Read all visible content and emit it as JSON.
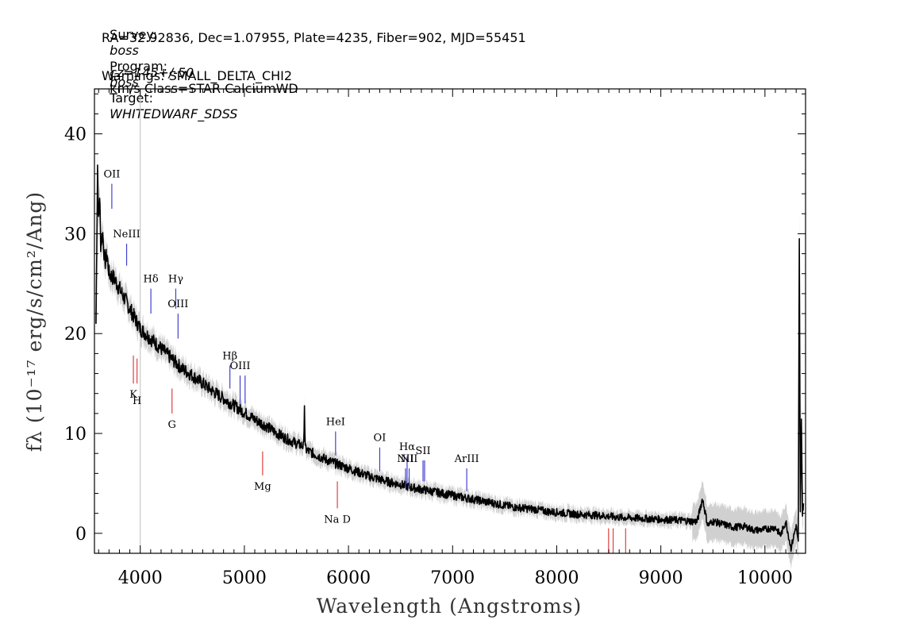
{
  "header": {
    "line1": {
      "survey_label": "Survey:",
      "survey": "boss",
      "program_label": "Program:",
      "program": "boss",
      "target_label": "Target:",
      "target": "WHITEDWARF_SDSS"
    },
    "line2": "RA=32.92836, Dec=1.07955, Plate=4235, Fiber=902, MJD=55451",
    "line3": {
      "cz": "cz=145+/-50",
      "rest": "km/s Class=STAR CalciumWD"
    },
    "line4": "Warnings: SMALL_DELTA_CHI2"
  },
  "chart_data": {
    "type": "line",
    "xlabel": "Wavelength (Angstroms)",
    "ylabel": "fλ (10⁻¹⁷ erg/s/cm²/Ang)",
    "xlim": [
      3560,
      10390
    ],
    "ylim": [
      -2,
      44.5
    ],
    "x_ticks": [
      4000,
      5000,
      6000,
      7000,
      8000,
      9000,
      10000
    ],
    "y_ticks": [
      0,
      10,
      20,
      30,
      40
    ],
    "grid": false,
    "vline_x": 4000,
    "series": [
      {
        "color": "#000000",
        "x": [
          3575,
          3590,
          3600,
          3610,
          3620,
          3640,
          3660,
          3680,
          3700,
          3750,
          3800,
          3850,
          3900,
          3950,
          4000,
          4100,
          4200,
          4300,
          4400,
          4500,
          4600,
          4700,
          4800,
          4900,
          5000,
          5100,
          5200,
          5300,
          5400,
          5500,
          5570,
          5577,
          5584,
          5600,
          5700,
          5800,
          5900,
          6000,
          6100,
          6200,
          6300,
          6400,
          6500,
          6600,
          6700,
          6800,
          6900,
          7000,
          7100,
          7200,
          7300,
          7400,
          7500,
          7600,
          7700,
          7800,
          7900,
          8000,
          8200,
          8400,
          8600,
          8800,
          9000,
          9200,
          9300,
          9350,
          9400,
          9450,
          9500,
          9600,
          9700,
          9800,
          9900,
          10000,
          10100,
          10150,
          10200,
          10250,
          10300,
          10320,
          10330,
          10340,
          10350,
          10360,
          10370
        ],
        "y": [
          21,
          37,
          31,
          34,
          29,
          30,
          27,
          28,
          26,
          25.5,
          24.5,
          23.5,
          22.5,
          21.5,
          20.5,
          19.5,
          18.5,
          17.5,
          16.5,
          15.8,
          15,
          14.2,
          13.5,
          12.8,
          12.1,
          11.4,
          10.8,
          10.1,
          9.5,
          9,
          8.7,
          13,
          8.5,
          8.3,
          7.8,
          7.3,
          6.9,
          6.5,
          6.1,
          5.7,
          5.4,
          5.1,
          4.9,
          4.6,
          4.4,
          4.2,
          4,
          3.8,
          3.6,
          3.4,
          3.2,
          3,
          2.8,
          2.6,
          2.5,
          2.4,
          2.2,
          2.1,
          1.9,
          1.8,
          1.6,
          1.5,
          1.4,
          1.3,
          1.2,
          1.2,
          3.5,
          0.8,
          1.2,
          0.9,
          0.6,
          0.7,
          0.3,
          0.4,
          0.6,
          -0.2,
          1.2,
          -1.5,
          0.8,
          -1.0,
          29,
          2,
          12,
          2,
          3
        ]
      }
    ],
    "emission_lines": [
      {
        "label": "OII",
        "x": 3727,
        "y": [
          32.5,
          35
        ]
      },
      {
        "label": "NeIII",
        "x": 3869,
        "y": [
          26.8,
          29
        ]
      },
      {
        "label": "Hδ",
        "x": 4102,
        "y": [
          22,
          24.5
        ]
      },
      {
        "label": "Hγ",
        "x": 4341,
        "y": [
          22.5,
          24.5
        ]
      },
      {
        "label": "OIII",
        "x": 4363,
        "y": [
          19.5,
          22
        ]
      },
      {
        "label": "Hβ",
        "x": 4861,
        "y": [
          14.5,
          16.8
        ]
      },
      {
        "label": "OIII",
        "x": 4959,
        "y": [
          13,
          15.8
        ]
      },
      {
        "label": "",
        "x": 5007,
        "y": [
          13,
          15.8
        ]
      },
      {
        "label": "HeI",
        "x": 5876,
        "y": [
          7.8,
          10.2
        ]
      },
      {
        "label": "OI",
        "x": 6300,
        "y": [
          6.2,
          8.6
        ]
      },
      {
        "label": "NII",
        "x": 6548,
        "y": [
          4.5,
          6.5
        ]
      },
      {
        "label": "Hα",
        "x": 6563,
        "y": [
          5.1,
          7.7
        ]
      },
      {
        "label": "NII",
        "x": 6583,
        "y": [
          4.5,
          6.5
        ]
      },
      {
        "label": "SII",
        "x": 6716,
        "y": [
          5.2,
          7.3
        ]
      },
      {
        "label": "",
        "x": 6731,
        "y": [
          5.2,
          7.3
        ]
      },
      {
        "label": "ArIII",
        "x": 7136,
        "y": [
          4.2,
          6.5
        ]
      }
    ],
    "absorption_lines": [
      {
        "label": "K",
        "x": 3934,
        "y": [
          15,
          17.8
        ]
      },
      {
        "label": "H",
        "x": 3969,
        "y": [
          15,
          17.5
        ]
      },
      {
        "label": "G",
        "x": 4305,
        "y": [
          12,
          14.5
        ]
      },
      {
        "label": "Mg",
        "x": 5175,
        "y": [
          5.8,
          8.2
        ]
      },
      {
        "label": "Na D",
        "x": 5893,
        "y": [
          2.5,
          5.2
        ]
      },
      {
        "label": "",
        "x": 8498,
        "y": [
          -2,
          0.5
        ]
      },
      {
        "label": "",
        "x": 8542,
        "y": [
          -2,
          0.5
        ]
      },
      {
        "label": "",
        "x": 8662,
        "y": [
          -2,
          0.5
        ]
      }
    ],
    "colors": {
      "spectrum": "#000000",
      "error_band": "#c8c8c8",
      "emission": "#4040d0",
      "absorption": "#e04040",
      "axis_title": "#333333"
    }
  }
}
